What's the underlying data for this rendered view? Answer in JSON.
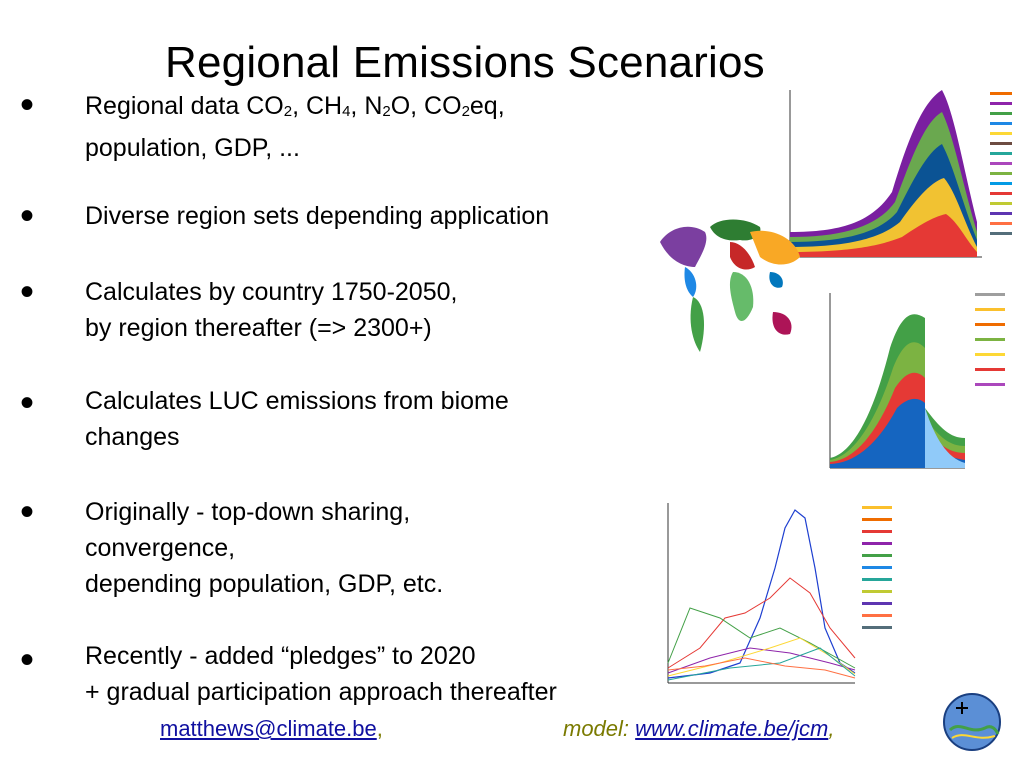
{
  "slide": {
    "title": "Regional Emissions Scenarios"
  },
  "bullets": [
    {
      "line1_pre": "Regional data CO",
      "sub1": "2",
      "mid1": ", CH",
      "sub2": "4",
      "mid2": ", N",
      "sub3": "2",
      "mid3": "O, CO",
      "sub4": "2",
      "end": "eq,",
      "line2": "population, GDP, ..."
    },
    {
      "line1": "Diverse region sets depending application"
    },
    {
      "line1": "Calculates by country 1750-2050,",
      "line2": "by region thereafter (=> 2300+)"
    },
    {
      "line1": "Calculates LUC emissions from biome",
      "line2": "changes"
    },
    {
      "line1": "Originally - top-down sharing,",
      "line2": "convergence,",
      "line3": "depending population, GDP, etc."
    },
    {
      "line1": "Recently - added “pledges” to 2020",
      "line2": "+ gradual participation approach thereafter"
    }
  ],
  "footer": {
    "email": "matthews@climate.be",
    "email_sep": ",",
    "model_label": "model: ",
    "model_url": "www.climate.be/jcm",
    "model_sep": ","
  },
  "colors": {
    "title": "#000000",
    "link": "#1010a0",
    "model_text": "#7a7a00"
  },
  "icons": [
    "world-map-graphic",
    "stacked-area-chart-graphic",
    "line-chart-graphic",
    "globe-logo-icon"
  ]
}
